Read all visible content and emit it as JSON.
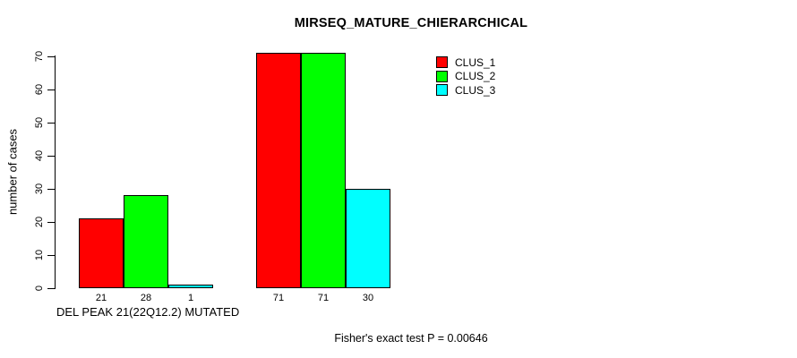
{
  "page": {
    "background": "#ffffff"
  },
  "chart_data": {
    "type": "bar",
    "title": "MIRSEQ_MATURE_CHIERARCHICAL",
    "ylabel": "number of cases",
    "xlabel": "DEL PEAK 21(22Q12.2) MUTATED",
    "ylim": [
      0,
      70
    ],
    "yticks": [
      0,
      10,
      20,
      30,
      40,
      50,
      60,
      70
    ],
    "grid": false,
    "legend_position": "top-right-inside",
    "categories": [
      "DEL PEAK 21(22Q12.2) MUTATED",
      ""
    ],
    "series": [
      {
        "name": "CLUS_1",
        "color": "#ff0000",
        "values": [
          21,
          71
        ]
      },
      {
        "name": "CLUS_2",
        "color": "#00ff00",
        "values": [
          28,
          71
        ]
      },
      {
        "name": "CLUS_3",
        "color": "#00ffff",
        "values": [
          1,
          30
        ]
      }
    ],
    "bar_value_labels": [
      [
        "21",
        "28",
        "1"
      ],
      [
        "71",
        "71",
        "30"
      ]
    ],
    "bar_border_color": "#000000"
  },
  "legend": {
    "items": [
      {
        "label": "CLUS_1",
        "color": "#ff0000"
      },
      {
        "label": "CLUS_2",
        "color": "#00ff00"
      },
      {
        "label": "CLUS_3",
        "color": "#00ffff"
      }
    ]
  },
  "footnote": "Fisher's exact test P = 0.00646"
}
